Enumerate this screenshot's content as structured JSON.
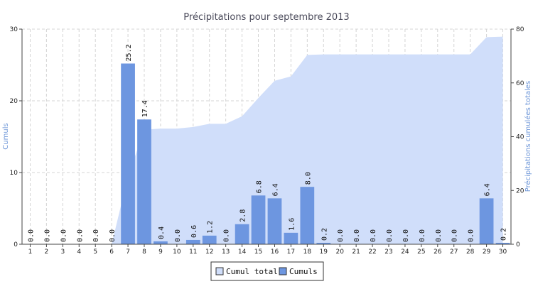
{
  "chart_data": {
    "type": "bar",
    "title": "Précipitations pour septembre 2013",
    "categories": [
      "1",
      "2",
      "3",
      "4",
      "5",
      "6",
      "7",
      "8",
      "9",
      "10",
      "11",
      "12",
      "13",
      "14",
      "15",
      "16",
      "17",
      "18",
      "19",
      "20",
      "21",
      "22",
      "23",
      "24",
      "25",
      "26",
      "27",
      "28",
      "29",
      "30"
    ],
    "value_labels": [
      "0.0",
      "0.0",
      "0.0",
      "0.0",
      "0.0",
      "0.0",
      "25.2",
      "17.4",
      "0.4",
      "0.0",
      "0.6",
      "1.2",
      "0.0",
      "2.8",
      "6.8",
      "6.4",
      "1.6",
      "8.0",
      "0.2",
      "0.0",
      "0.0",
      "0.0",
      "0.0",
      "0.0",
      "0.0",
      "0.0",
      "0.0",
      "0.0",
      "6.4",
      "0.2"
    ],
    "series": [
      {
        "name": "Cumuls",
        "type": "bar",
        "axis": "left",
        "color": "#6d96e0",
        "values": [
          0,
          0,
          0,
          0,
          0,
          0,
          25.2,
          17.4,
          0.4,
          0,
          0.6,
          1.2,
          0,
          2.8,
          6.8,
          6.4,
          1.6,
          8.0,
          0.2,
          0,
          0,
          0,
          0,
          0,
          0,
          0,
          0,
          0,
          6.4,
          0.2
        ]
      },
      {
        "name": "Cumul total",
        "type": "area",
        "axis": "right",
        "color": "#d0defa",
        "values": [
          0,
          0,
          0,
          0,
          0,
          0,
          25.2,
          42.6,
          43.0,
          43.0,
          43.6,
          44.8,
          44.8,
          47.6,
          54.4,
          60.8,
          62.4,
          70.4,
          70.6,
          70.6,
          70.6,
          70.6,
          70.6,
          70.6,
          70.6,
          70.6,
          70.6,
          70.6,
          77.0,
          77.2
        ]
      }
    ],
    "yaxis_left": {
      "label": "Cumuls",
      "ylim": [
        0,
        30
      ],
      "ticks": [
        0,
        10,
        20,
        30
      ]
    },
    "yaxis_right": {
      "label": "Précipitations cumulées totales",
      "ylim": [
        0,
        80
      ],
      "ticks": [
        0,
        20,
        40,
        60,
        80
      ]
    },
    "grid": true,
    "legend": {
      "position": "bottom-center",
      "entries": [
        "Cumul total",
        "Cumuls"
      ]
    }
  }
}
